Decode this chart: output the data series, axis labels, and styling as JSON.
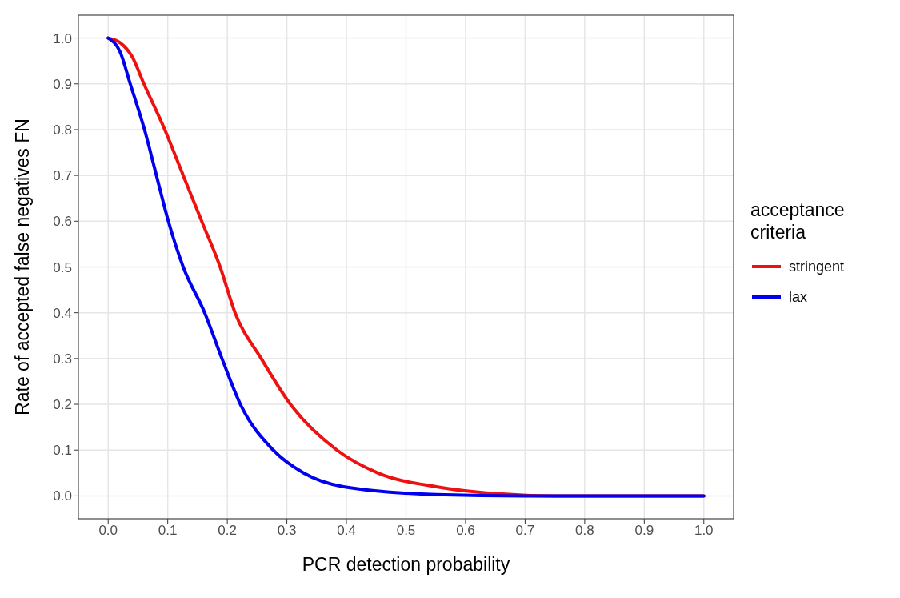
{
  "chart_data": {
    "type": "line",
    "xlabel": "PCR detection probability",
    "ylabel": "Rate of accepted false negatives FN",
    "legend_title": "acceptance criteria",
    "legend": "right",
    "grid": true,
    "marker": "none",
    "line_style": "solid",
    "xlim": [
      -0.05,
      1.05
    ],
    "ylim": [
      -0.05,
      1.05
    ],
    "xticks": [
      {
        "value": 0,
        "label": "0.0"
      },
      {
        "value": 0.1,
        "label": "0.1"
      },
      {
        "value": 0.2,
        "label": "0.2"
      },
      {
        "value": 0.3,
        "label": "0.3"
      },
      {
        "value": 0.4,
        "label": "0.4"
      },
      {
        "value": 0.5,
        "label": "0.5"
      },
      {
        "value": 0.6,
        "label": "0.6"
      },
      {
        "value": 0.7,
        "label": "0.7"
      },
      {
        "value": 0.8,
        "label": "0.8"
      },
      {
        "value": 0.9,
        "label": "0.9"
      },
      {
        "value": 1,
        "label": "1.0"
      }
    ],
    "yticks": [
      {
        "value": 0,
        "label": "0.0"
      },
      0.1,
      0.2,
      0.3,
      0.4,
      0.5,
      0.6,
      0.7,
      0.8,
      0.9,
      {
        "value": 1,
        "label": "1.0"
      }
    ],
    "series": [
      {
        "name": "stringent",
        "color": "#ee1111",
        "x": [
          0,
          0.02,
          0.04,
          0.06,
          0.095,
          0.126,
          0.157,
          0.188,
          0.213,
          0.257,
          0.306,
          0.384,
          0.453,
          0.551,
          0.65,
          0.75,
          1
        ],
        "values": [
          1,
          0.99,
          0.96,
          0.9,
          0.8,
          0.7,
          0.6,
          0.5,
          0.4,
          0.3,
          0.2,
          0.1,
          0.05,
          0.02,
          0.005,
          0,
          0
        ]
      },
      {
        "name": "lax",
        "color": "#0000ee",
        "x": [
          0,
          0.02,
          0.037,
          0.061,
          0.081,
          0.101,
          0.126,
          0.162,
          0.191,
          0.222,
          0.277,
          0.328,
          0.395,
          0.551,
          0.7,
          1
        ],
        "values": [
          1,
          0.97,
          0.9,
          0.8,
          0.7,
          0.6,
          0.5,
          0.4,
          0.3,
          0.2,
          0.1,
          0.05,
          0.02,
          0.003,
          0,
          0
        ]
      }
    ]
  }
}
